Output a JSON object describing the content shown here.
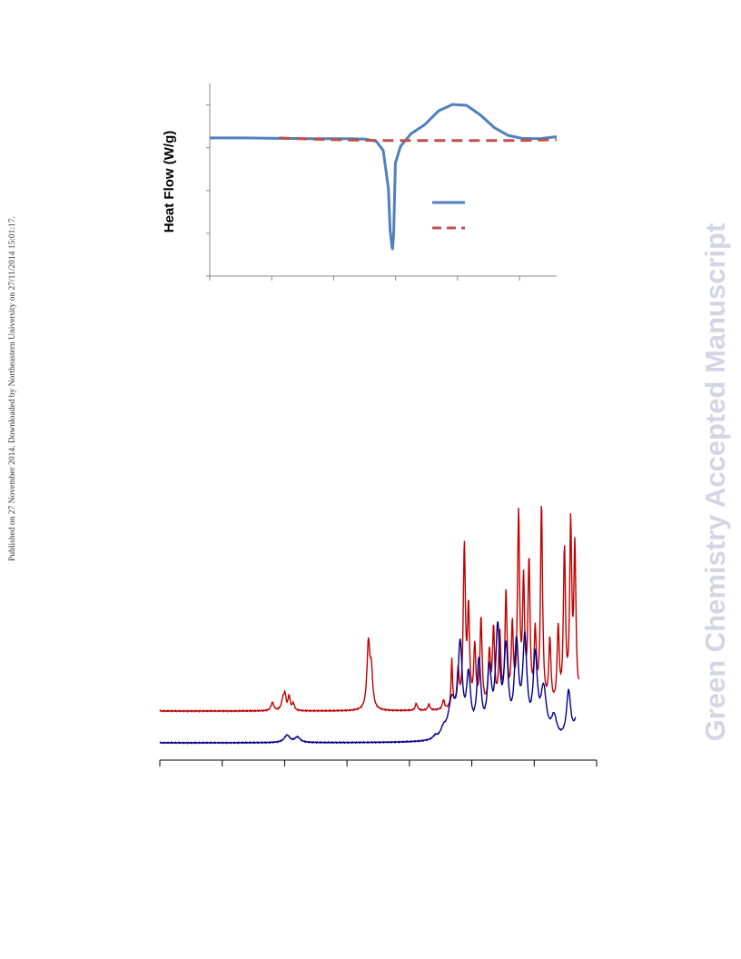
{
  "side_note": "Published on 27 November 2014. Downloaded by Northeastern University on 27/11/2014 15:01:17.",
  "watermark": "Green Chemistry Accepted Manuscript",
  "colors": {
    "dsc_solid": "#4f81bd",
    "dsc_dashed": "#c0504d",
    "nmr_red": "#c00000",
    "nmr_navy": "#00008b",
    "axis": "#888888"
  },
  "chart_data": [
    {
      "type": "line",
      "ylabel": "Heat Flow (W/g)",
      "xlabel": "",
      "title": "",
      "grid": false,
      "legend": "right, below curve",
      "x_ticks": 6,
      "y_ticks": 5,
      "xlim": [
        0,
        1
      ],
      "ylim": [
        -3.3,
        1.3
      ],
      "series": [
        {
          "style": "solid",
          "color": "#4f81bd",
          "x": [
            0.0,
            0.1,
            0.2,
            0.3,
            0.4,
            0.45,
            0.48,
            0.5,
            0.515,
            0.52,
            0.525,
            0.527,
            0.53,
            0.535,
            0.55,
            0.58,
            0.62,
            0.66,
            0.7,
            0.74,
            0.78,
            0.82,
            0.86,
            0.9,
            0.95,
            1.0
          ],
          "y": [
            0.0,
            0.0,
            -0.01,
            -0.02,
            -0.02,
            -0.03,
            -0.08,
            -0.3,
            -1.2,
            -2.2,
            -2.6,
            -2.65,
            -2.3,
            -0.6,
            -0.2,
            0.1,
            0.32,
            0.65,
            0.8,
            0.78,
            0.55,
            0.25,
            0.06,
            -0.01,
            -0.02,
            0.03
          ]
        },
        {
          "style": "dashed",
          "color": "#c0504d",
          "x": [
            0.2,
            0.3,
            0.4,
            0.5,
            0.6,
            0.7,
            0.8,
            0.9,
            1.0
          ],
          "y": [
            0.0,
            -0.03,
            -0.05,
            -0.06,
            -0.06,
            -0.06,
            -0.06,
            -0.06,
            -0.04
          ]
        }
      ]
    },
    {
      "type": "line",
      "title": "",
      "xlabel": "",
      "ylabel": "",
      "grid": false,
      "x_ticks": 8,
      "xlim": [
        0,
        1
      ],
      "series": [
        {
          "color": "#c00000",
          "baseline": 0.0,
          "peaks": [
            [
              0.27,
              0.07,
              0.004
            ],
            [
              0.295,
              0.09,
              0.004
            ],
            [
              0.3,
              0.12,
              0.003
            ],
            [
              0.31,
              0.12,
              0.003
            ],
            [
              0.32,
              0.06,
              0.003
            ],
            [
              0.5,
              0.55,
              0.004
            ],
            [
              0.507,
              0.3,
              0.004
            ],
            [
              0.615,
              0.06,
              0.003
            ],
            [
              0.645,
              0.05,
              0.003
            ],
            [
              0.68,
              0.08,
              0.003
            ],
            [
              0.7,
              0.42,
              0.002
            ],
            [
              0.715,
              0.3,
              0.003
            ],
            [
              0.73,
              1.35,
              0.003
            ],
            [
              0.74,
              0.8,
              0.003
            ],
            [
              0.755,
              0.5,
              0.003
            ],
            [
              0.77,
              0.75,
              0.003
            ],
            [
              0.79,
              0.45,
              0.003
            ],
            [
              0.8,
              0.65,
              0.003
            ],
            [
              0.815,
              0.6,
              0.003
            ],
            [
              0.83,
              0.95,
              0.003
            ],
            [
              0.845,
              0.65,
              0.003
            ],
            [
              0.86,
              1.6,
              0.003
            ],
            [
              0.872,
              1.0,
              0.003
            ],
            [
              0.885,
              1.2,
              0.003
            ],
            [
              0.9,
              0.6,
              0.003
            ],
            [
              0.915,
              1.7,
              0.003
            ],
            [
              0.935,
              0.55,
              0.003
            ],
            [
              0.955,
              0.65,
              0.003
            ],
            [
              0.97,
              1.3,
              0.003
            ],
            [
              0.985,
              1.5,
              0.003
            ],
            [
              0.995,
              1.3,
              0.003
            ],
            [
              1.01,
              0.35,
              0.003
            ],
            [
              1.025,
              0.3,
              0.005
            ]
          ]
        },
        {
          "color": "#00008b",
          "baseline": 0.0,
          "peaks": [
            [
              0.305,
              0.07,
              0.008
            ],
            [
              0.33,
              0.05,
              0.008
            ],
            [
              0.66,
              0.03,
              0.006
            ],
            [
              0.68,
              0.08,
              0.008
            ],
            [
              0.7,
              0.35,
              0.01
            ],
            [
              0.72,
              0.85,
              0.006
            ],
            [
              0.74,
              0.55,
              0.006
            ],
            [
              0.765,
              0.7,
              0.006
            ],
            [
              0.79,
              0.6,
              0.006
            ],
            [
              0.81,
              1.0,
              0.006
            ],
            [
              0.83,
              0.8,
              0.006
            ],
            [
              0.855,
              0.85,
              0.006
            ],
            [
              0.875,
              0.9,
              0.006
            ],
            [
              0.9,
              0.75,
              0.006
            ],
            [
              0.92,
              0.45,
              0.008
            ],
            [
              0.945,
              0.2,
              0.008
            ],
            [
              0.98,
              0.45,
              0.006
            ],
            [
              1.0,
              0.2,
              0.008
            ]
          ]
        }
      ]
    }
  ]
}
